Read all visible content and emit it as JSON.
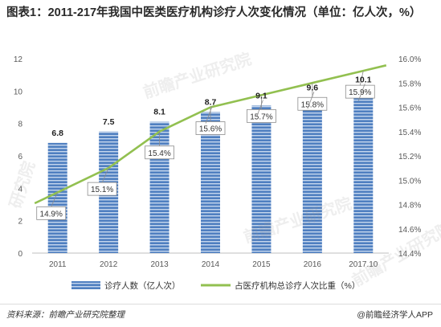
{
  "title": "图表1：2011-217年我国中医类医疗机构诊疗人次变化情况（单位：亿人次，%）",
  "footer": {
    "source": "资料来源：前瞻产业研究院整理",
    "brand": "@前瞻经济学人APP"
  },
  "watermarks": [
    "前瞻产业研究院",
    "前瞻产业研究院",
    "研究院",
    "前瞻产业研究院"
  ],
  "colors": {
    "bar": "#4f7fc0",
    "bar_stripe": "#c6d7ee",
    "line": "#92c050",
    "label_box_border": "#8c8c8c"
  },
  "chart_data": {
    "type": "bar+line",
    "categories": [
      "2011",
      "2012",
      "2013",
      "2014",
      "2015",
      "2016",
      "2017.10"
    ],
    "series": [
      {
        "name": "诊疗人数（亿人次）",
        "type": "bar",
        "axis": "left",
        "values": [
          6.8,
          7.5,
          8.1,
          8.7,
          9.1,
          9.6,
          10.1
        ],
        "labels": [
          "6.8",
          "7.5",
          "8.1",
          "8.7",
          "9.1",
          "9.6",
          "10.1"
        ]
      },
      {
        "name": "占医疗机构总诊疗人次比重（%）",
        "type": "line",
        "axis": "right",
        "values": [
          14.9,
          15.1,
          15.4,
          15.6,
          15.7,
          15.8,
          15.9
        ],
        "labels": [
          "14.9%",
          "15.1%",
          "15.4%",
          "15.6%",
          "15.7%",
          "15.8%",
          "15.9%"
        ]
      }
    ],
    "y_left": {
      "min": 0,
      "max": 12,
      "ticks": [
        "0",
        "2",
        "4",
        "6",
        "8",
        "10",
        "12"
      ]
    },
    "y_right": {
      "min": 14.4,
      "max": 16.0,
      "ticks": [
        "14.4%",
        "14.6%",
        "14.8%",
        "15.0%",
        "15.2%",
        "15.4%",
        "15.6%",
        "15.8%",
        "16.0%"
      ]
    },
    "grid": false,
    "legend_position": "bottom"
  }
}
